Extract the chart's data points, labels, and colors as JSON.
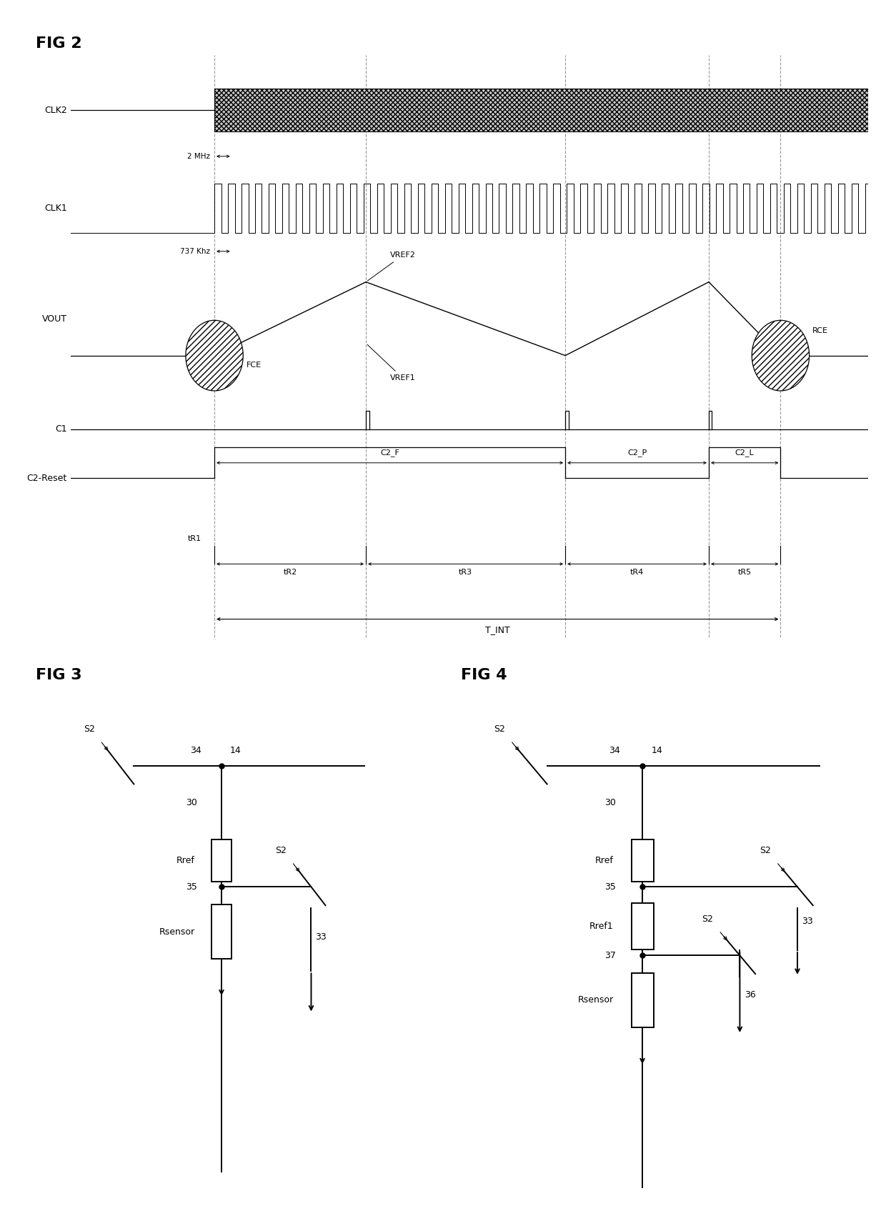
{
  "fig2_title": "FIG 2",
  "fig3_title": "FIG 3",
  "fig4_title": "FIG 4",
  "bg_color": "#ffffff",
  "clk2_label": "CLK2",
  "clk1_label": "CLK1",
  "freq2_label": "2 MHz",
  "freq1_label": "737 Khz",
  "vout_label": "VOUT",
  "c1_label": "C1",
  "c2_reset_label": "C2-Reset",
  "t_int_label": "T_INT",
  "vref2_label": "VREF2",
  "vref1_label": "VREF1",
  "fce_label": "FCE",
  "rce_label": "RCE",
  "c2f_label": "C2_F",
  "c2p_label": "C2_P",
  "c2l_label": "C2_L",
  "tr1_label": "tR1",
  "tr2_label": "tR2",
  "tr3_label": "tR3",
  "tr4_label": "tR4",
  "tr5_label": "tR5",
  "vx": [
    0.18,
    0.37,
    0.62,
    0.8,
    0.89
  ],
  "fig3_s2_top": "S2",
  "fig3_34": "34",
  "fig3_14": "14",
  "fig3_30": "30",
  "fig3_rref": "Rref",
  "fig3_35": "35",
  "fig3_rsensor": "Rsensor",
  "fig3_33": "33",
  "fig3_s2_sw": "S2",
  "fig4_s2_top": "S2",
  "fig4_34": "34",
  "fig4_14": "14",
  "fig4_30": "30",
  "fig4_rref": "Rref",
  "fig4_35": "35",
  "fig4_rref1": "Rref1",
  "fig4_37": "37",
  "fig4_rsensor": "Rsensor",
  "fig4_36": "36",
  "fig4_33": "33",
  "fig4_s2_a": "S2",
  "fig4_s2_b": "S2"
}
